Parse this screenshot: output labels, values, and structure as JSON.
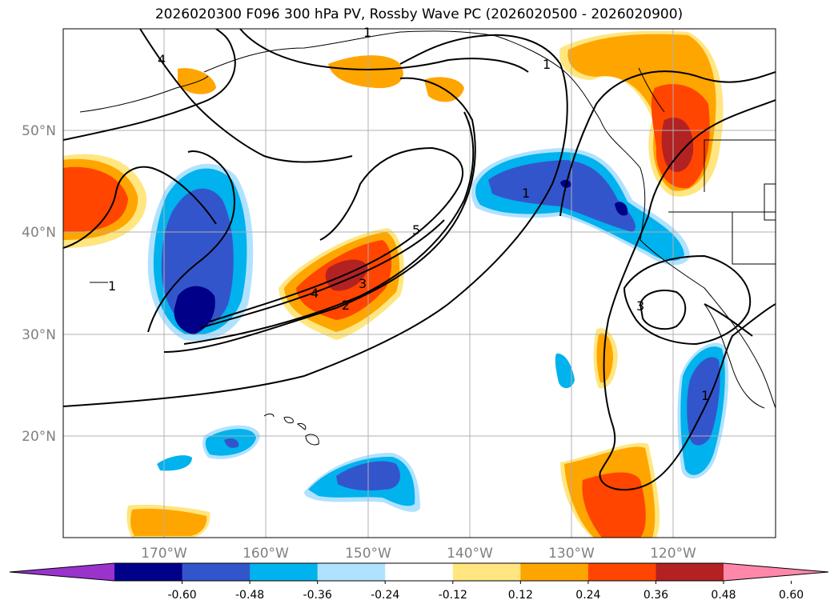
{
  "title": "2026020300 F096 300 hPa PV, Rossby Wave PC (2026020500 - 2026020900)",
  "lat_labels": [
    "50°N",
    "40°N",
    "30°N",
    "20°N"
  ],
  "lon_labels": [
    "170°W",
    "160°W",
    "150°W",
    "140°W",
    "130°W",
    "120°W"
  ],
  "colorbar": {
    "tick_labels": [
      "-0.60",
      "-0.48",
      "-0.36",
      "-0.24",
      "-0.12",
      "0.12",
      "0.24",
      "0.36",
      "0.48",
      "0.60"
    ],
    "colors": [
      "#9933cc",
      "#000088",
      "#3355cc",
      "#00b2ee",
      "#b0e2ff",
      "#ffffff",
      "#ffe680",
      "#ffa500",
      "#ff4500",
      "#b22222",
      "#ff88aa"
    ]
  },
  "contour_labels": [
    "5",
    "4",
    "3",
    "2",
    "1",
    "1",
    "1",
    "3",
    "1",
    "4",
    "1"
  ],
  "colors": {
    "grid": "#b0b0b0",
    "coast": "#000000",
    "contour": "#000000"
  }
}
